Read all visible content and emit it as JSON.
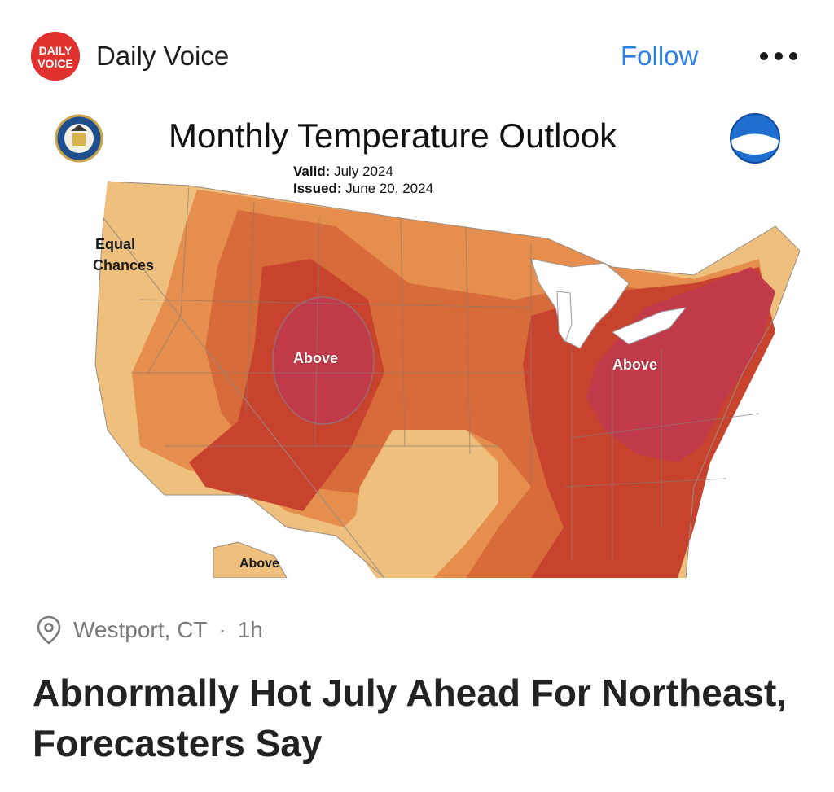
{
  "header": {
    "publisher_name": "Daily Voice",
    "logo_text_top": "DAILY",
    "logo_text_bottom": "VOICE",
    "follow_label": "Follow",
    "more_icon": "ellipsis-icon"
  },
  "map_image": {
    "title": "Monthly Temperature Outlook",
    "valid_label": "Valid:",
    "valid_value": "July 2024",
    "issued_label": "Issued:",
    "issued_value": "June 20, 2024",
    "labels": {
      "equal_chances_line1": "Equal",
      "equal_chances_line2": "Chances",
      "above_west": "Above",
      "above_east": "Above",
      "above_alaska": "Above"
    },
    "colors": {
      "light_orange": "#efc07d",
      "orange": "#e58e4e",
      "dark_orange": "#d86b3a",
      "red": "#c8432e",
      "deep_red": "#c03a4a"
    }
  },
  "post_meta": {
    "location": "Westport, CT",
    "separator": "·",
    "time_ago": "1h",
    "location_icon": "location-pin-icon"
  },
  "headline": "Abnormally Hot July Ahead For Northeast, Forecasters Say"
}
